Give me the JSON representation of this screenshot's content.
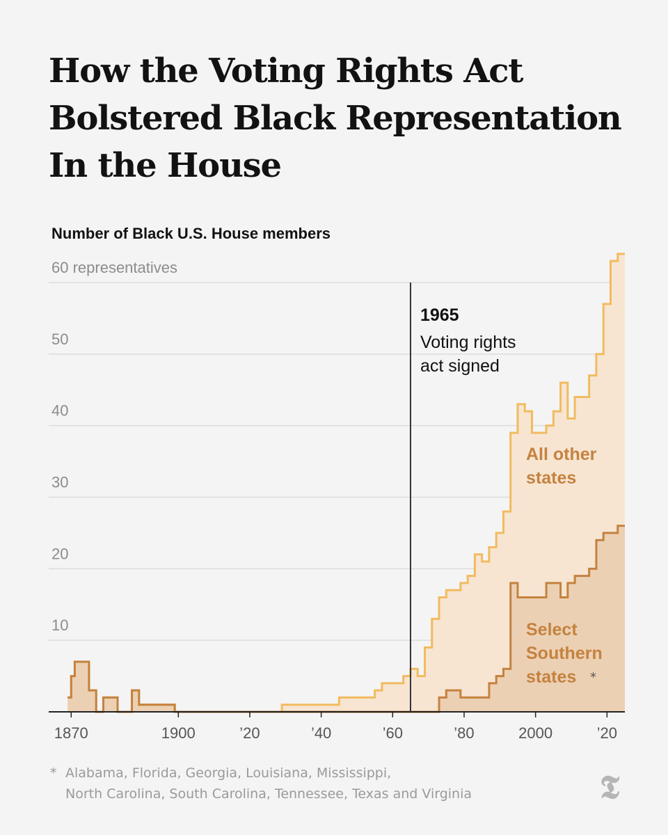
{
  "title_lines": [
    "How the Voting Rights Act",
    "Bolstered Black Representation",
    "In the House"
  ],
  "footnote": {
    "marker": "*",
    "line1": "Alabama, Florida, Georgia, Louisiana, Mississippi,",
    "line2": "North Carolina, South Carolina, Tennessee, Texas and Virginia"
  },
  "logo_icon": "nyt-logo-icon",
  "chart_data": {
    "type": "area",
    "step": true,
    "stacked": true,
    "subtitle": "Number of Black U.S. House members",
    "xlim": [
      1868,
      2025
    ],
    "ylim": [
      0,
      60
    ],
    "grid": true,
    "y_ticks": [
      {
        "value": 60,
        "label": "60 representatives"
      },
      {
        "value": 50,
        "label": "50"
      },
      {
        "value": 40,
        "label": "40"
      },
      {
        "value": 30,
        "label": "30"
      },
      {
        "value": 20,
        "label": "20"
      },
      {
        "value": 10,
        "label": "10"
      }
    ],
    "x_ticks": [
      {
        "value": 1870,
        "label": "1870"
      },
      {
        "value": 1900,
        "label": "1900"
      },
      {
        "value": 1920,
        "label": "’20"
      },
      {
        "value": 1940,
        "label": "’40"
      },
      {
        "value": 1960,
        "label": "’60"
      },
      {
        "value": 1980,
        "label": "’80"
      },
      {
        "value": 2000,
        "label": "2000"
      },
      {
        "value": 2020,
        "label": "’20"
      }
    ],
    "annotation": {
      "x": 1965,
      "year_label": "1965",
      "text_lines": [
        "Voting rights",
        "act signed"
      ]
    },
    "colors": {
      "southern_line": "#c4823f",
      "southern_fill": "#ecd0b3",
      "other_line": "#f1bb5f",
      "other_fill": "#f7e5d2",
      "grid": "#dcdcdc",
      "axis": "#222222",
      "annotation": "#111111",
      "tick_text": "#8c8c8c",
      "series_label": "#c4823f"
    },
    "series": [
      {
        "id": "southern",
        "label_lines": [
          "Select",
          "Southern",
          "states"
        ],
        "label_marker": "*",
        "points": [
          [
            1869,
            2
          ],
          [
            1870,
            5
          ],
          [
            1871,
            7
          ],
          [
            1875,
            3
          ],
          [
            1877,
            0
          ],
          [
            1879,
            2
          ],
          [
            1883,
            0
          ],
          [
            1887,
            3
          ],
          [
            1889,
            1
          ],
          [
            1899,
            0
          ],
          [
            1971,
            0
          ],
          [
            1973,
            2
          ],
          [
            1975,
            3
          ],
          [
            1979,
            2
          ],
          [
            1987,
            4
          ],
          [
            1989,
            5
          ],
          [
            1991,
            6
          ],
          [
            1993,
            18
          ],
          [
            1995,
            16
          ],
          [
            2003,
            18
          ],
          [
            2007,
            16
          ],
          [
            2009,
            18
          ],
          [
            2011,
            19
          ],
          [
            2015,
            20
          ],
          [
            2017,
            24
          ],
          [
            2019,
            25
          ],
          [
            2023,
            26
          ],
          [
            2025,
            26
          ]
        ]
      },
      {
        "id": "other",
        "label_lines": [
          "All other",
          "states"
        ],
        "points": [
          [
            1869,
            2
          ],
          [
            1870,
            5
          ],
          [
            1871,
            7
          ],
          [
            1875,
            3
          ],
          [
            1877,
            0
          ],
          [
            1879,
            2
          ],
          [
            1883,
            0
          ],
          [
            1887,
            3
          ],
          [
            1889,
            1
          ],
          [
            1899,
            0
          ],
          [
            1929,
            1
          ],
          [
            1945,
            2
          ],
          [
            1955,
            3
          ],
          [
            1957,
            4
          ],
          [
            1963,
            5
          ],
          [
            1965,
            6
          ],
          [
            1967,
            5
          ],
          [
            1969,
            9
          ],
          [
            1971,
            13
          ],
          [
            1973,
            16
          ],
          [
            1975,
            17
          ],
          [
            1979,
            18
          ],
          [
            1981,
            19
          ],
          [
            1983,
            22
          ],
          [
            1985,
            21
          ],
          [
            1987,
            23
          ],
          [
            1989,
            25
          ],
          [
            1991,
            28
          ],
          [
            1993,
            39
          ],
          [
            1995,
            43
          ],
          [
            1997,
            42
          ],
          [
            1999,
            39
          ],
          [
            2003,
            40
          ],
          [
            2005,
            42
          ],
          [
            2007,
            46
          ],
          [
            2009,
            41
          ],
          [
            2011,
            44
          ],
          [
            2015,
            47
          ],
          [
            2017,
            50
          ],
          [
            2019,
            57
          ],
          [
            2021,
            63
          ],
          [
            2023,
            64
          ],
          [
            2025,
            64
          ]
        ]
      }
    ]
  }
}
